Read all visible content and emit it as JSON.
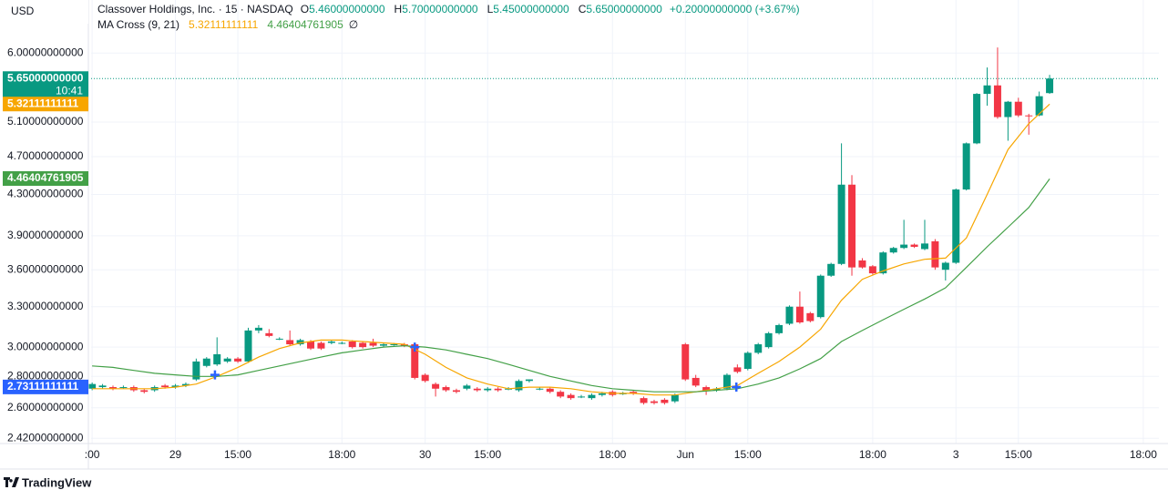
{
  "header": {
    "currency": "USD",
    "title": "Classover Holdings, Inc. · 15 · NASDAQ",
    "ohlc": [
      {
        "label": "O",
        "value": "5.46000000000"
      },
      {
        "label": "H",
        "value": "5.70000000000"
      },
      {
        "label": "L",
        "value": "5.45000000000"
      },
      {
        "label": "C",
        "value": "5.65000000000"
      }
    ],
    "change": "+0.20000000000 (+3.67%)",
    "indicator": "MA Cross (9, 21)",
    "indicator_flag": "∅"
  },
  "footer": {
    "brand": "TradingView"
  },
  "chart_data": {
    "type": "candlestick",
    "log_scale": true,
    "grid": true,
    "up_color": "#089981",
    "down_color": "#f23645",
    "open": [
      2.72,
      2.73,
      2.73,
      2.73,
      2.73,
      2.71,
      2.71,
      2.74,
      2.73,
      2.74,
      2.78,
      2.87,
      2.88,
      2.9,
      2.92,
      2.9,
      3.12,
      3.1,
      3.06,
      3.05,
      3.02,
      3.04,
      3.03,
      3.03,
      3.03,
      3.04,
      3.03,
      3.03,
      3.01,
      3.02,
      3.02,
      3.02,
      2.81,
      2.75,
      2.73,
      2.71,
      2.72,
      2.72,
      2.71,
      2.72,
      2.72,
      2.71,
      2.77,
      2.72,
      2.72,
      2.7,
      2.68,
      2.67,
      2.66,
      2.68,
      2.7,
      2.69,
      2.7,
      2.66,
      2.64,
      2.65,
      2.64,
      3.02,
      2.79,
      2.73,
      2.71,
      2.72,
      2.86,
      2.85,
      2.96,
      3.0,
      3.1,
      3.17,
      3.3,
      3.25,
      3.22,
      3.55,
      3.65,
      4.4,
      3.68,
      3.63,
      3.57,
      3.75,
      3.79,
      3.82,
      3.78,
      3.85,
      3.6,
      3.66,
      4.35,
      4.85,
      5.45,
      5.56,
      5.16,
      5.35,
      5.18,
      5.18,
      5.46
    ],
    "high": [
      2.76,
      2.75,
      2.74,
      2.74,
      2.74,
      2.72,
      2.74,
      2.75,
      2.75,
      2.76,
      2.92,
      2.93,
      3.07,
      2.93,
      2.93,
      3.14,
      3.16,
      3.13,
      3.07,
      3.12,
      3.06,
      3.05,
      3.04,
      3.05,
      3.04,
      3.05,
      3.04,
      3.06,
      3.03,
      3.03,
      3.03,
      3.03,
      2.82,
      2.76,
      2.74,
      2.72,
      2.75,
      2.73,
      2.73,
      2.73,
      2.73,
      2.78,
      2.78,
      2.73,
      2.73,
      2.71,
      2.69,
      2.68,
      2.69,
      2.7,
      2.71,
      2.7,
      2.71,
      2.67,
      2.65,
      2.66,
      2.69,
      3.03,
      2.81,
      2.74,
      2.73,
      2.82,
      2.88,
      2.97,
      3.03,
      3.11,
      3.17,
      3.31,
      3.42,
      3.26,
      3.56,
      3.66,
      4.85,
      4.5,
      3.7,
      3.64,
      3.76,
      3.8,
      4.05,
      3.83,
      4.05,
      3.87,
      3.67,
      4.36,
      4.86,
      5.46,
      5.8,
      6.08,
      5.36,
      5.4,
      5.2,
      5.48,
      5.7
    ],
    "low": [
      2.71,
      2.72,
      2.71,
      2.72,
      2.7,
      2.69,
      2.7,
      2.72,
      2.72,
      2.73,
      2.77,
      2.86,
      2.87,
      2.89,
      2.89,
      2.89,
      3.1,
      3.07,
      3.05,
      3.01,
      3.01,
      2.98,
      2.98,
      3.02,
      3.02,
      2.99,
      2.99,
      3.0,
      3.0,
      3.01,
      3.0,
      2.78,
      2.76,
      2.67,
      2.7,
      2.69,
      2.71,
      2.7,
      2.7,
      2.7,
      2.71,
      2.7,
      2.76,
      2.71,
      2.69,
      2.66,
      2.65,
      2.66,
      2.65,
      2.67,
      2.67,
      2.68,
      2.68,
      2.62,
      2.62,
      2.62,
      2.63,
      2.77,
      2.73,
      2.68,
      2.7,
      2.71,
      2.82,
      2.84,
      2.95,
      2.99,
      3.09,
      3.16,
      3.17,
      3.18,
      3.21,
      3.54,
      3.64,
      3.55,
      3.61,
      3.56,
      3.56,
      3.74,
      3.78,
      3.79,
      3.77,
      3.6,
      3.51,
      3.65,
      4.34,
      4.84,
      5.3,
      5.14,
      4.88,
      5.16,
      4.95,
      5.17,
      5.45
    ],
    "close": [
      2.75,
      2.74,
      2.72,
      2.73,
      2.71,
      2.7,
      2.73,
      2.73,
      2.74,
      2.75,
      2.9,
      2.92,
      2.95,
      2.92,
      2.9,
      3.12,
      3.14,
      3.08,
      3.06,
      3.02,
      3.05,
      2.99,
      2.99,
      3.04,
      3.03,
      3.0,
      3.0,
      3.01,
      3.02,
      3.02,
      3.01,
      2.79,
      2.77,
      2.72,
      2.71,
      2.7,
      2.74,
      2.71,
      2.72,
      2.71,
      2.72,
      2.77,
      2.78,
      2.72,
      2.7,
      2.67,
      2.66,
      2.67,
      2.68,
      2.69,
      2.68,
      2.69,
      2.69,
      2.63,
      2.63,
      2.63,
      2.68,
      2.78,
      2.74,
      2.71,
      2.72,
      2.81,
      2.83,
      2.96,
      3.02,
      3.1,
      3.16,
      3.3,
      3.18,
      3.19,
      3.55,
      3.65,
      4.4,
      3.62,
      3.62,
      3.57,
      3.75,
      3.79,
      3.82,
      3.8,
      3.83,
      3.62,
      3.66,
      4.35,
      4.85,
      5.45,
      5.56,
      5.16,
      5.35,
      5.18,
      5.17,
      5.42,
      5.65
    ],
    "ma_lines": [
      {
        "color": "#f7a600",
        "x": [
          0,
          2,
          4,
          6,
          8,
          10,
          12,
          14,
          16,
          18,
          20,
          22,
          24,
          26,
          28,
          30,
          32,
          34,
          36,
          38,
          40,
          42,
          44,
          46,
          48,
          50,
          52,
          54,
          56,
          58,
          60,
          62,
          64,
          66,
          68,
          70,
          72,
          74,
          76,
          78,
          80,
          82,
          84,
          86,
          88,
          90,
          92
        ],
        "values": [
          2.72,
          2.72,
          2.72,
          2.72,
          2.73,
          2.75,
          2.8,
          2.86,
          2.93,
          2.99,
          3.03,
          3.05,
          3.05,
          3.04,
          3.03,
          3.02,
          2.95,
          2.86,
          2.79,
          2.75,
          2.72,
          2.73,
          2.73,
          2.72,
          2.7,
          2.69,
          2.69,
          2.68,
          2.68,
          2.7,
          2.72,
          2.74,
          2.82,
          2.9,
          3.0,
          3.13,
          3.35,
          3.52,
          3.59,
          3.65,
          3.69,
          3.7,
          3.88,
          4.3,
          4.78,
          5.08,
          5.32
        ]
      },
      {
        "color": "#43a047",
        "x": [
          0,
          2,
          4,
          6,
          8,
          10,
          12,
          14,
          16,
          18,
          20,
          22,
          24,
          26,
          28,
          30,
          32,
          34,
          36,
          38,
          40,
          42,
          44,
          46,
          48,
          50,
          52,
          54,
          56,
          58,
          60,
          62,
          64,
          66,
          68,
          70,
          72,
          74,
          76,
          78,
          80,
          82,
          84,
          86,
          88,
          90,
          92
        ],
        "values": [
          2.87,
          2.86,
          2.84,
          2.82,
          2.81,
          2.8,
          2.8,
          2.81,
          2.84,
          2.87,
          2.9,
          2.93,
          2.96,
          2.98,
          3.0,
          3.01,
          3.0,
          2.98,
          2.95,
          2.92,
          2.88,
          2.84,
          2.8,
          2.77,
          2.74,
          2.72,
          2.71,
          2.7,
          2.7,
          2.7,
          2.71,
          2.72,
          2.75,
          2.79,
          2.85,
          2.92,
          3.04,
          3.12,
          3.2,
          3.28,
          3.36,
          3.45,
          3.62,
          3.8,
          3.98,
          4.17,
          4.46
        ]
      }
    ],
    "crosses": {
      "color": "#2962ff",
      "x": [
        11.8,
        31,
        61.9
      ],
      "values": [
        2.81,
        3.0,
        2.73
      ]
    },
    "price_badges": [
      {
        "value": 5.65,
        "label": "5.65000000000",
        "sublabel": "10:41",
        "color": "#089981"
      },
      {
        "value": 5.32111111111,
        "label": "5.32111111111",
        "color": "#f7a600"
      },
      {
        "value": 4.46404761905,
        "label": "4.46404761905",
        "color": "#43a047"
      },
      {
        "value": 2.73111111111,
        "label": "2.73111111111",
        "color": "#2962ff"
      }
    ],
    "xlim": [
      -0.1,
      102.5
    ],
    "ylim": [
      2.39,
      6.8
    ],
    "xticks": [
      {
        "value": 0,
        "label": ":00"
      },
      {
        "value": 8,
        "label": "29"
      },
      {
        "value": 14,
        "label": "15:00"
      },
      {
        "value": 24,
        "label": "18:00"
      },
      {
        "value": 32,
        "label": "30"
      },
      {
        "value": 38,
        "label": "15:00"
      },
      {
        "value": 50,
        "label": "18:00"
      },
      {
        "value": 57,
        "label": "Jun"
      },
      {
        "value": 63,
        "label": "15:00"
      },
      {
        "value": 75,
        "label": "18:00"
      },
      {
        "value": 83,
        "label": "3"
      },
      {
        "value": 89,
        "label": "15:00"
      },
      {
        "value": 101,
        "label": "18:00"
      }
    ],
    "yticks": [
      {
        "value": 2.42,
        "label": "2.42000000000"
      },
      {
        "value": 2.6,
        "label": "2.60000000000"
      },
      {
        "value": 2.8,
        "label": "2.80000000000"
      },
      {
        "value": 3.0,
        "label": "3.00000000000"
      },
      {
        "value": 3.3,
        "label": "3.30000000000"
      },
      {
        "value": 3.6,
        "label": "3.60000000000"
      },
      {
        "value": 3.9,
        "label": "3.90000000000"
      },
      {
        "value": 4.3,
        "label": "4.30000000000"
      },
      {
        "value": 4.7,
        "label": "4.70000000000"
      },
      {
        "value": 5.1,
        "label": "5.10000000000"
      },
      {
        "value": 6.0,
        "label": "6.00000000000"
      }
    ]
  }
}
